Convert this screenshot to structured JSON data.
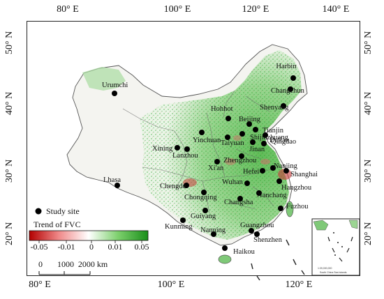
{
  "axes": {
    "top_ticks": [
      "80° E",
      "100° E",
      "120° E",
      "140° E"
    ],
    "bottom_ticks": [
      "80° E",
      "100° E",
      "120° E"
    ],
    "left_ticks": [
      "50° N",
      "40° N",
      "30° N",
      "20° N"
    ],
    "right_ticks": [
      "50° N",
      "40° N",
      "30° N",
      "20° N"
    ]
  },
  "legend": {
    "site_label": "Study site",
    "colorbar_title": "Trend of FVC",
    "colorbar_ticks": [
      "-0.05",
      "-0.01",
      "0",
      "0.01",
      "0.05"
    ],
    "colors": [
      "#b30000",
      "#ffffff",
      "#1a8f1a"
    ],
    "scale_ticks": [
      "0",
      "1000",
      "2000 km"
    ]
  },
  "sites": [
    {
      "name": "Urumchi"
    },
    {
      "name": "Harbin"
    },
    {
      "name": "Changchun"
    },
    {
      "name": "Shenyang"
    },
    {
      "name": "Hohhot"
    },
    {
      "name": "Beijing"
    },
    {
      "name": "Tianjin"
    },
    {
      "name": "Dalian"
    },
    {
      "name": "Shijiazhuang"
    },
    {
      "name": "Jinan"
    },
    {
      "name": "Qingdao"
    },
    {
      "name": "Yinchuan"
    },
    {
      "name": "Taiyuan"
    },
    {
      "name": "Xining"
    },
    {
      "name": "Lanzhou"
    },
    {
      "name": "Zhengzhou"
    },
    {
      "name": "Xi'an"
    },
    {
      "name": "Nanjing"
    },
    {
      "name": "Hefei"
    },
    {
      "name": "Shanghai"
    },
    {
      "name": "Hangzhou"
    },
    {
      "name": "Lhasa"
    },
    {
      "name": "Chengdu"
    },
    {
      "name": "Wuhan"
    },
    {
      "name": "Chongqing"
    },
    {
      "name": "Changsha"
    },
    {
      "name": "Nanchang"
    },
    {
      "name": "Fuzhou"
    },
    {
      "name": "Guiyang"
    },
    {
      "name": "Kunming"
    },
    {
      "name": "Nanning"
    },
    {
      "name": "Guangzhou"
    },
    {
      "name": "Shenzhen"
    },
    {
      "name": "Haikou"
    }
  ],
  "inset": {
    "scale_text": "1:39,000,000",
    "caption": "South China Sea Islands"
  }
}
